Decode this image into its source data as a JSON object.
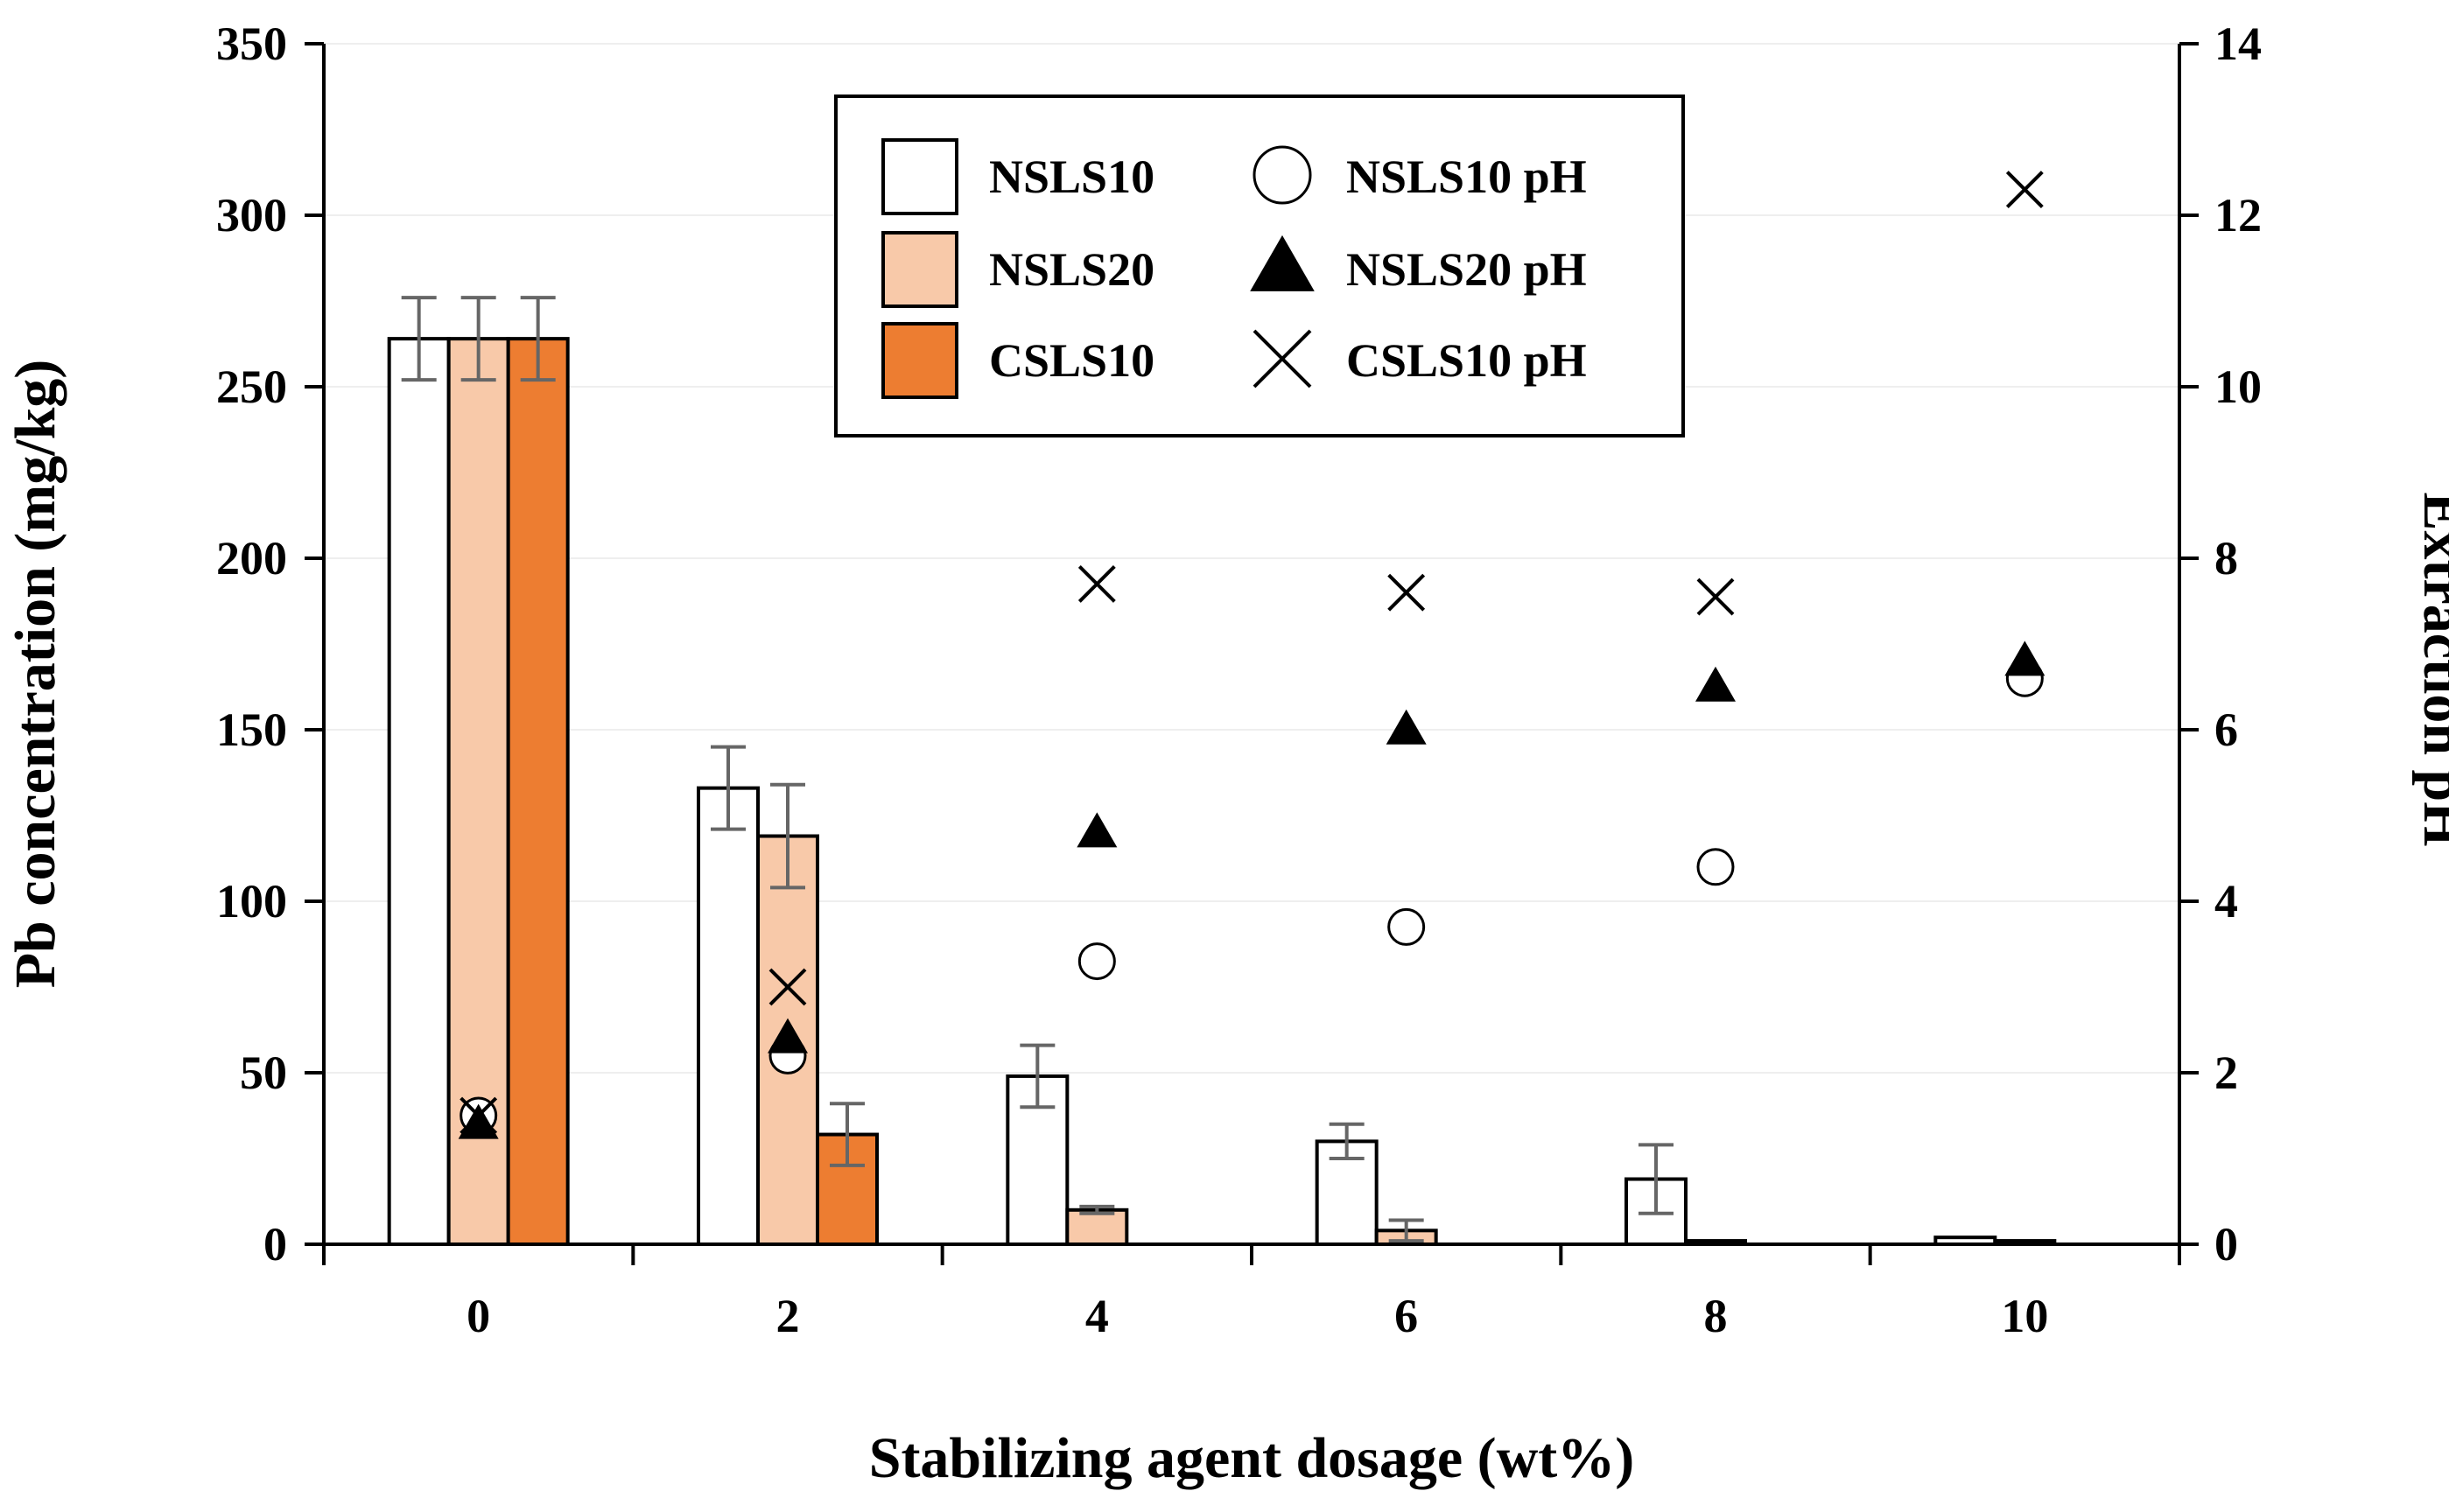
{
  "chart_data": {
    "type": "bar",
    "xlabel": "Stabilizing agent dosage (wt%)",
    "ylabel": "Pb concentration (mg/kg)",
    "y2label": "Extraction pH",
    "categories": [
      "0",
      "2",
      "4",
      "6",
      "8",
      "10"
    ],
    "ylim": [
      0,
      350
    ],
    "yticks": [
      0,
      50,
      100,
      150,
      200,
      250,
      300,
      350
    ],
    "y2lim": [
      0,
      14
    ],
    "y2ticks": [
      0,
      2,
      4,
      6,
      8,
      10,
      12,
      14
    ],
    "grid": true,
    "legend_position": "top-center",
    "bar_series": [
      {
        "name": "NSLS10",
        "values": [
          264,
          133,
          49,
          30,
          19,
          2
        ],
        "errors": [
          12,
          12,
          9,
          5,
          10,
          0
        ],
        "color": "#ffffff"
      },
      {
        "name": "NSLS20",
        "values": [
          264,
          119,
          10,
          4,
          1,
          1
        ],
        "errors": [
          12,
          15,
          1,
          3,
          0,
          0
        ],
        "color": "#f8c9a9"
      },
      {
        "name": "CSLS10",
        "values": [
          264,
          32,
          null,
          null,
          null,
          null
        ],
        "errors": [
          12,
          9,
          null,
          null,
          null,
          null
        ],
        "color": "#ed7d31"
      }
    ],
    "ph_series": [
      {
        "name": "NSLS10 pH",
        "marker": "circle",
        "values": [
          1.5,
          2.2,
          3.3,
          3.7,
          4.4,
          6.6
        ]
      },
      {
        "name": "NSLS20 pH",
        "marker": "triangle",
        "values": [
          1.4,
          2.4,
          4.8,
          6.0,
          6.5,
          6.8
        ]
      },
      {
        "name": "CSLS10 pH",
        "marker": "x",
        "values": [
          1.5,
          3.0,
          7.7,
          7.6,
          7.55,
          12.3
        ]
      }
    ]
  }
}
